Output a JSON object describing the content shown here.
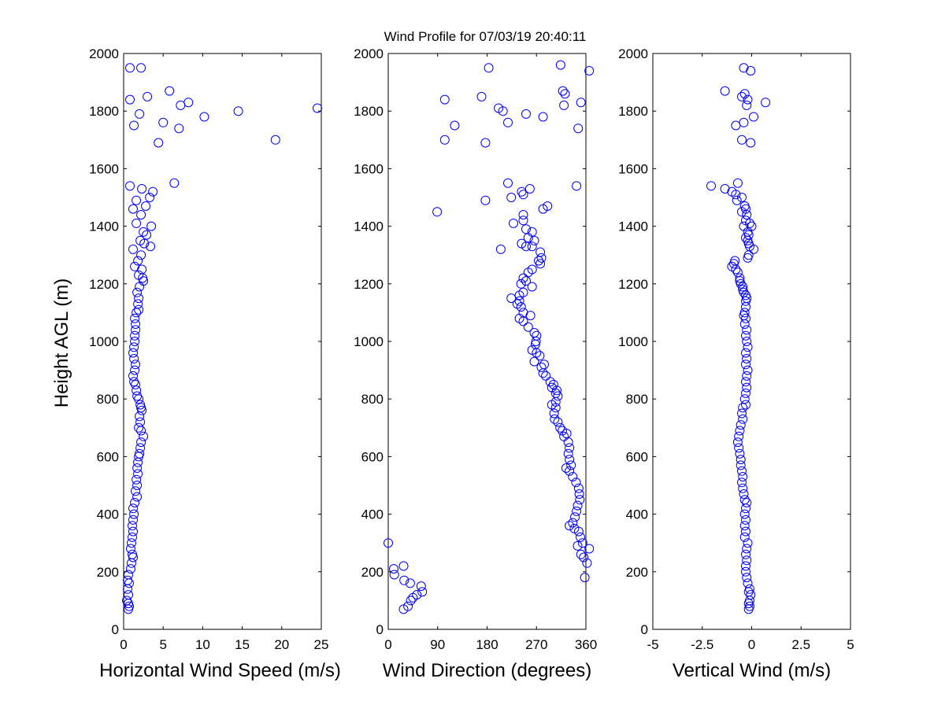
{
  "title": "Wind Profile for  07/03/19 20:40:11",
  "ylabel": "Height AGL (m)",
  "marker_color": "#0000ff",
  "chart_data": [
    {
      "type": "scatter",
      "xlabel": "Horizontal Wind Speed (m/s)",
      "xlim": [
        0,
        25
      ],
      "ylim": [
        0,
        2000
      ],
      "xticks": [
        0,
        5,
        10,
        15,
        20,
        25
      ],
      "xtick_labels": [
        "0",
        "5",
        "10",
        "15",
        "20",
        "25"
      ],
      "yticks": [
        0,
        200,
        400,
        600,
        800,
        1000,
        1200,
        1400,
        1600,
        1800,
        2000
      ],
      "ytick_labels": [
        "0",
        "200",
        "400",
        "600",
        "800",
        "1000",
        "1200",
        "1400",
        "1600",
        "1800",
        "2000"
      ],
      "grid": false,
      "points": [
        [
          0.8,
          1950
        ],
        [
          2.2,
          1950
        ],
        [
          0.8,
          1840
        ],
        [
          3.0,
          1850
        ],
        [
          2.0,
          1790
        ],
        [
          1.3,
          1750
        ],
        [
          5.8,
          1870
        ],
        [
          7.2,
          1820
        ],
        [
          8.2,
          1830
        ],
        [
          10.2,
          1780
        ],
        [
          14.5,
          1800
        ],
        [
          24.5,
          1810
        ],
        [
          5.0,
          1760
        ],
        [
          7.0,
          1740
        ],
        [
          4.4,
          1690
        ],
        [
          19.2,
          1700
        ],
        [
          6.4,
          1550
        ],
        [
          0.8,
          1540
        ],
        [
          2.3,
          1530
        ],
        [
          3.7,
          1520
        ],
        [
          3.3,
          1500
        ],
        [
          1.6,
          1490
        ],
        [
          2.8,
          1470
        ],
        [
          1.2,
          1460
        ],
        [
          2.2,
          1440
        ],
        [
          1.6,
          1410
        ],
        [
          3.5,
          1400
        ],
        [
          2.5,
          1380
        ],
        [
          2.9,
          1370
        ],
        [
          2.1,
          1350
        ],
        [
          2.6,
          1340
        ],
        [
          3.4,
          1330
        ],
        [
          1.2,
          1320
        ],
        [
          2.2,
          1300
        ],
        [
          1.8,
          1280
        ],
        [
          1.4,
          1260
        ],
        [
          2.3,
          1250
        ],
        [
          1.9,
          1230
        ],
        [
          2.5,
          1210
        ],
        [
          2.4,
          1220
        ],
        [
          2.0,
          1190
        ],
        [
          1.7,
          1170
        ],
        [
          1.9,
          1150
        ],
        [
          1.8,
          1130
        ],
        [
          1.9,
          1110
        ],
        [
          1.6,
          1100
        ],
        [
          1.4,
          1080
        ],
        [
          1.5,
          1060
        ],
        [
          1.5,
          1040
        ],
        [
          1.4,
          1020
        ],
        [
          1.4,
          1000
        ],
        [
          1.3,
          980
        ],
        [
          1.2,
          960
        ],
        [
          1.3,
          940
        ],
        [
          1.5,
          920
        ],
        [
          1.4,
          900
        ],
        [
          1.2,
          880
        ],
        [
          1.3,
          860
        ],
        [
          1.5,
          850
        ],
        [
          1.6,
          830
        ],
        [
          1.7,
          810
        ],
        [
          1.9,
          800
        ],
        [
          2.1,
          780
        ],
        [
          2.2,
          770
        ],
        [
          2.3,
          760
        ],
        [
          2.0,
          740
        ],
        [
          2.1,
          720
        ],
        [
          1.9,
          700
        ],
        [
          2.2,
          690
        ],
        [
          2.5,
          670
        ],
        [
          2.2,
          650
        ],
        [
          2.1,
          630
        ],
        [
          2.0,
          610
        ],
        [
          1.9,
          600
        ],
        [
          1.8,
          580
        ],
        [
          1.7,
          560
        ],
        [
          1.8,
          540
        ],
        [
          1.6,
          520
        ],
        [
          1.7,
          500
        ],
        [
          1.5,
          480
        ],
        [
          1.7,
          460
        ],
        [
          1.4,
          440
        ],
        [
          1.2,
          420
        ],
        [
          1.3,
          400
        ],
        [
          1.2,
          380
        ],
        [
          1.1,
          360
        ],
        [
          1.2,
          340
        ],
        [
          1.1,
          320
        ],
        [
          1.0,
          300
        ],
        [
          0.9,
          280
        ],
        [
          1.1,
          260
        ],
        [
          1.2,
          250
        ],
        [
          1.0,
          230
        ],
        [
          0.9,
          210
        ],
        [
          0.6,
          190
        ],
        [
          0.5,
          170
        ],
        [
          0.7,
          160
        ],
        [
          0.5,
          140
        ],
        [
          0.6,
          120
        ],
        [
          0.4,
          100
        ],
        [
          0.6,
          90
        ],
        [
          0.7,
          80
        ],
        [
          0.6,
          70
        ]
      ]
    },
    {
      "type": "scatter",
      "xlabel": "Wind Direction (degrees)",
      "xlim": [
        0,
        360
      ],
      "ylim": [
        0,
        2000
      ],
      "xticks": [
        0,
        90,
        180,
        270,
        360
      ],
      "xtick_labels": [
        "0",
        "90",
        "180",
        "270",
        "360"
      ],
      "yticks": [
        0,
        200,
        400,
        600,
        800,
        1000,
        1200,
        1400,
        1600,
        1800,
        2000
      ],
      "ytick_labels": [
        "0",
        "200",
        "400",
        "600",
        "800",
        "1000",
        "1200",
        "1400",
        "1600",
        "1800",
        "2000"
      ],
      "grid": false,
      "points": [
        [
          183,
          1950
        ],
        [
          314,
          1960
        ],
        [
          366,
          1940
        ],
        [
          103,
          1840
        ],
        [
          170,
          1850
        ],
        [
          201,
          1810
        ],
        [
          209,
          1800
        ],
        [
          251,
          1790
        ],
        [
          318,
          1870
        ],
        [
          322,
          1860
        ],
        [
          320,
          1820
        ],
        [
          351,
          1830
        ],
        [
          218,
          1760
        ],
        [
          282,
          1780
        ],
        [
          121,
          1750
        ],
        [
          346,
          1740
        ],
        [
          103,
          1700
        ],
        [
          177,
          1690
        ],
        [
          218,
          1550
        ],
        [
          343,
          1540
        ],
        [
          243,
          1520
        ],
        [
          258,
          1530
        ],
        [
          246,
          1510
        ],
        [
          224,
          1500
        ],
        [
          177,
          1490
        ],
        [
          89,
          1450
        ],
        [
          282,
          1460
        ],
        [
          290,
          1470
        ],
        [
          246,
          1440
        ],
        [
          246,
          1420
        ],
        [
          228,
          1410
        ],
        [
          251,
          1390
        ],
        [
          262,
          1380
        ],
        [
          255,
          1360
        ],
        [
          266,
          1350
        ],
        [
          243,
          1340
        ],
        [
          251,
          1330
        ],
        [
          262,
          1330
        ],
        [
          205,
          1320
        ],
        [
          277,
          1310
        ],
        [
          279,
          1290
        ],
        [
          274,
          1280
        ],
        [
          277,
          1270
        ],
        [
          262,
          1250
        ],
        [
          255,
          1240
        ],
        [
          246,
          1220
        ],
        [
          251,
          1210
        ],
        [
          242,
          1200
        ],
        [
          262,
          1190
        ],
        [
          246,
          1170
        ],
        [
          239,
          1160
        ],
        [
          224,
          1150
        ],
        [
          239,
          1140
        ],
        [
          235,
          1130
        ],
        [
          242,
          1120
        ],
        [
          246,
          1100
        ],
        [
          259,
          1090
        ],
        [
          239,
          1080
        ],
        [
          246,
          1070
        ],
        [
          255,
          1050
        ],
        [
          266,
          1030
        ],
        [
          270,
          1020
        ],
        [
          269,
          1000
        ],
        [
          268,
          990
        ],
        [
          262,
          970
        ],
        [
          270,
          960
        ],
        [
          276,
          950
        ],
        [
          266,
          930
        ],
        [
          284,
          920
        ],
        [
          279,
          910
        ],
        [
          282,
          890
        ],
        [
          287,
          880
        ],
        [
          295,
          860
        ],
        [
          301,
          850
        ],
        [
          298,
          840
        ],
        [
          307,
          830
        ],
        [
          305,
          820
        ],
        [
          309,
          810
        ],
        [
          305,
          790
        ],
        [
          298,
          780
        ],
        [
          305,
          770
        ],
        [
          302,
          750
        ],
        [
          303,
          730
        ],
        [
          309,
          720
        ],
        [
          313,
          700
        ],
        [
          317,
          690
        ],
        [
          325,
          680
        ],
        [
          320,
          670
        ],
        [
          328,
          650
        ],
        [
          330,
          630
        ],
        [
          328,
          610
        ],
        [
          330,
          590
        ],
        [
          333,
          570
        ],
        [
          324,
          560
        ],
        [
          330,
          550
        ],
        [
          336,
          530
        ],
        [
          342,
          510
        ],
        [
          347,
          490
        ],
        [
          348,
          470
        ],
        [
          349,
          450
        ],
        [
          345,
          430
        ],
        [
          343,
          410
        ],
        [
          340,
          390
        ],
        [
          336,
          370
        ],
        [
          330,
          360
        ],
        [
          339,
          350
        ],
        [
          347,
          340
        ],
        [
          350,
          320
        ],
        [
          354,
          300
        ],
        [
          345,
          290
        ],
        [
          366,
          280
        ],
        [
          351,
          260
        ],
        [
          356,
          250
        ],
        [
          362,
          230
        ],
        [
          358,
          180
        ],
        [
          0,
          300
        ],
        [
          10,
          210
        ],
        [
          11,
          190
        ],
        [
          28,
          220
        ],
        [
          29,
          170
        ],
        [
          40,
          160
        ],
        [
          60,
          150
        ],
        [
          62,
          130
        ],
        [
          52,
          120
        ],
        [
          45,
          110
        ],
        [
          41,
          100
        ],
        [
          36,
          80
        ],
        [
          28,
          70
        ]
      ]
    },
    {
      "type": "scatter",
      "xlabel": "Vertical Wind (m/s)",
      "xlim": [
        -5,
        5
      ],
      "ylim": [
        0,
        2000
      ],
      "xticks": [
        -5,
        -2.5,
        0,
        2.5,
        5
      ],
      "xtick_labels": [
        "-5",
        "-2.5",
        "0",
        "2.5",
        "5"
      ],
      "yticks": [
        0,
        200,
        400,
        600,
        800,
        1000,
        1200,
        1400,
        1600,
        1800,
        2000
      ],
      "ytick_labels": [
        "0",
        "200",
        "400",
        "600",
        "800",
        "1000",
        "1200",
        "1400",
        "1600",
        "1800",
        "2000"
      ],
      "grid": false,
      "points": [
        [
          -0.4,
          1950
        ],
        [
          -0.05,
          1940
        ],
        [
          -1.35,
          1870
        ],
        [
          -0.35,
          1860
        ],
        [
          -0.5,
          1850
        ],
        [
          -0.2,
          1840
        ],
        [
          0.7,
          1830
        ],
        [
          -0.25,
          1820
        ],
        [
          0.1,
          1780
        ],
        [
          -0.4,
          1760
        ],
        [
          -0.8,
          1750
        ],
        [
          -0.5,
          1700
        ],
        [
          -0.05,
          1690
        ],
        [
          -2.05,
          1540
        ],
        [
          -1.35,
          1530
        ],
        [
          -0.7,
          1550
        ],
        [
          -1.0,
          1520
        ],
        [
          -0.8,
          1510
        ],
        [
          -0.5,
          1500
        ],
        [
          -0.75,
          1490
        ],
        [
          -0.35,
          1470
        ],
        [
          -0.3,
          1460
        ],
        [
          -0.5,
          1450
        ],
        [
          -0.25,
          1440
        ],
        [
          -0.3,
          1420
        ],
        [
          -0.1,
          1410
        ],
        [
          0.0,
          1400
        ],
        [
          -0.4,
          1400
        ],
        [
          -0.2,
          1380
        ],
        [
          -0.15,
          1370
        ],
        [
          -0.3,
          1360
        ],
        [
          -0.2,
          1350
        ],
        [
          -0.15,
          1340
        ],
        [
          -0.1,
          1330
        ],
        [
          0.1,
          1320
        ],
        [
          -0.15,
          1300
        ],
        [
          -0.2,
          1290
        ],
        [
          -0.85,
          1280
        ],
        [
          -0.9,
          1270
        ],
        [
          -1.0,
          1260
        ],
        [
          -0.8,
          1250
        ],
        [
          -0.7,
          1240
        ],
        [
          -0.6,
          1220
        ],
        [
          -0.6,
          1210
        ],
        [
          -0.55,
          1200
        ],
        [
          -0.45,
          1190
        ],
        [
          -0.45,
          1180
        ],
        [
          -0.4,
          1170
        ],
        [
          -0.3,
          1160
        ],
        [
          -0.25,
          1150
        ],
        [
          -0.3,
          1140
        ],
        [
          -0.3,
          1120
        ],
        [
          -0.35,
          1100
        ],
        [
          -0.4,
          1090
        ],
        [
          -0.3,
          1080
        ],
        [
          -0.35,
          1060
        ],
        [
          -0.25,
          1040
        ],
        [
          -0.3,
          1020
        ],
        [
          -0.25,
          1000
        ],
        [
          -0.2,
          980
        ],
        [
          -0.3,
          960
        ],
        [
          -0.25,
          940
        ],
        [
          -0.3,
          920
        ],
        [
          -0.2,
          900
        ],
        [
          -0.25,
          880
        ],
        [
          -0.3,
          860
        ],
        [
          -0.25,
          840
        ],
        [
          -0.3,
          820
        ],
        [
          -0.35,
          800
        ],
        [
          -0.3,
          780
        ],
        [
          -0.45,
          770
        ],
        [
          -0.5,
          750
        ],
        [
          -0.45,
          730
        ],
        [
          -0.55,
          710
        ],
        [
          -0.6,
          690
        ],
        [
          -0.65,
          670
        ],
        [
          -0.7,
          650
        ],
        [
          -0.65,
          630
        ],
        [
          -0.6,
          610
        ],
        [
          -0.55,
          590
        ],
        [
          -0.55,
          570
        ],
        [
          -0.5,
          550
        ],
        [
          -0.45,
          530
        ],
        [
          -0.5,
          510
        ],
        [
          -0.45,
          490
        ],
        [
          -0.4,
          470
        ],
        [
          -0.35,
          450
        ],
        [
          -0.25,
          440
        ],
        [
          -0.3,
          420
        ],
        [
          -0.35,
          400
        ],
        [
          -0.3,
          380
        ],
        [
          -0.35,
          360
        ],
        [
          -0.3,
          340
        ],
        [
          -0.35,
          320
        ],
        [
          -0.2,
          300
        ],
        [
          -0.25,
          280
        ],
        [
          -0.3,
          260
        ],
        [
          -0.25,
          240
        ],
        [
          -0.3,
          220
        ],
        [
          -0.3,
          200
        ],
        [
          -0.25,
          180
        ],
        [
          -0.2,
          160
        ],
        [
          -0.1,
          140
        ],
        [
          -0.15,
          130
        ],
        [
          -0.05,
          120
        ],
        [
          -0.1,
          100
        ],
        [
          -0.15,
          90
        ],
        [
          -0.1,
          80
        ],
        [
          -0.15,
          70
        ]
      ]
    }
  ]
}
